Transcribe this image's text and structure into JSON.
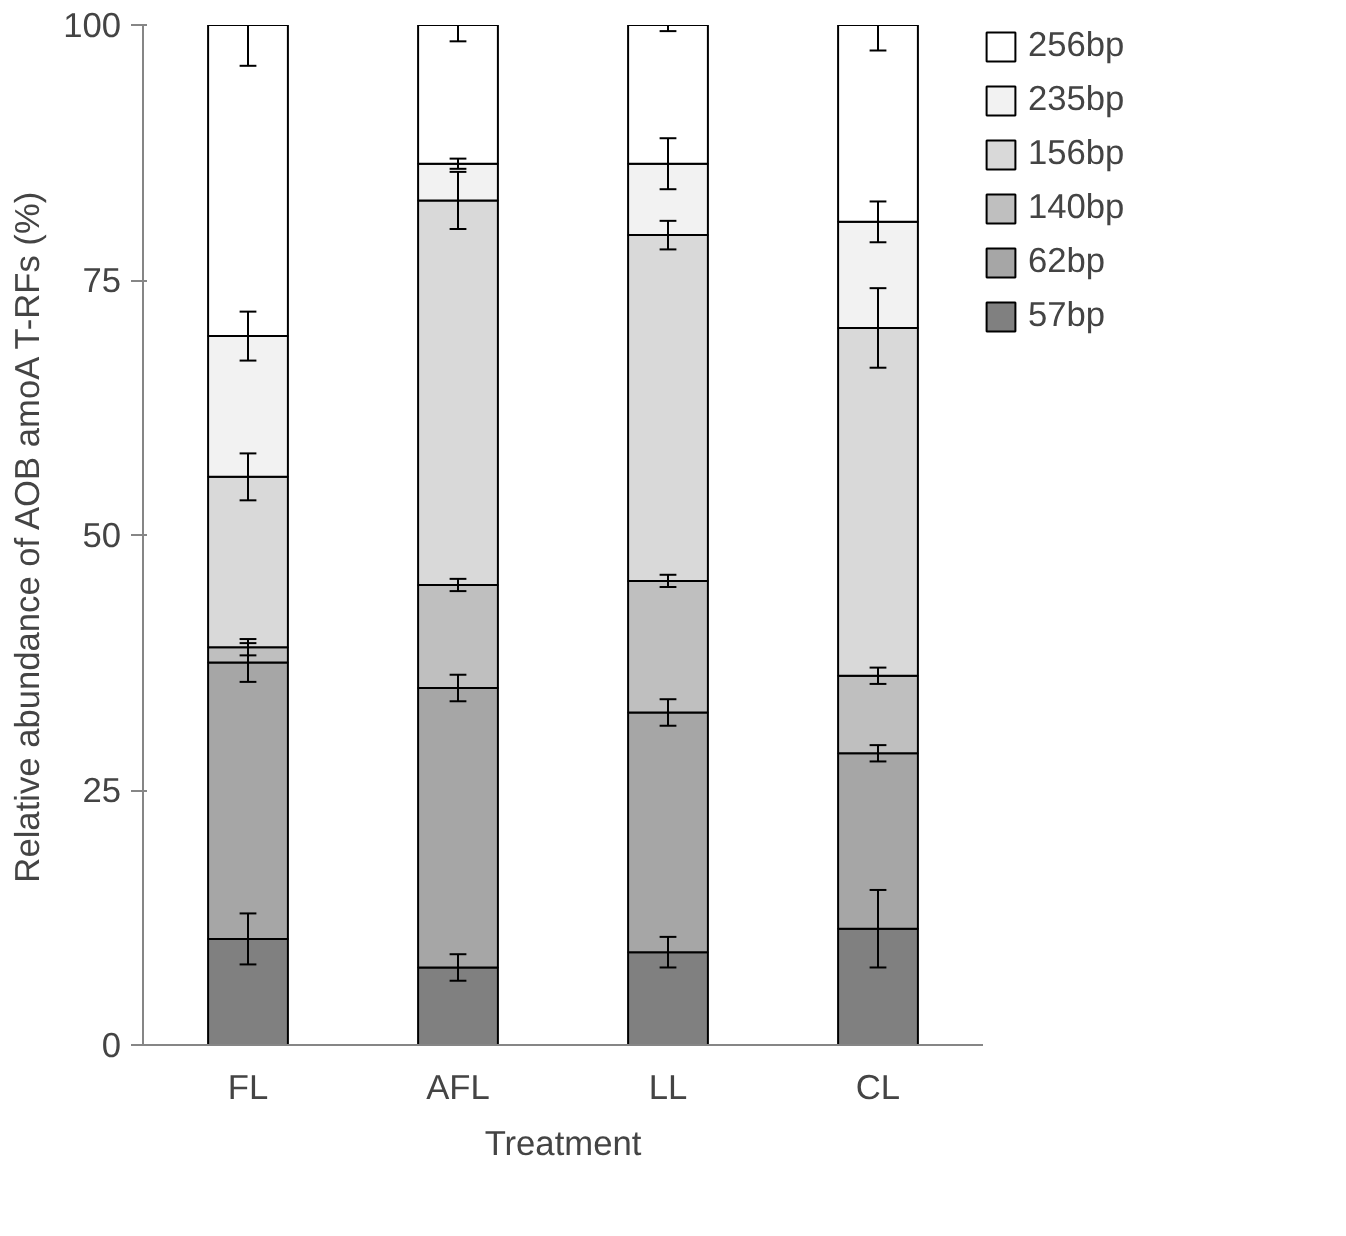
{
  "chart_data": {
    "type": "bar",
    "stacked": true,
    "xlabel": "Treatment",
    "ylabel": "Relative abundance of AOB amoA T-RFs (%)",
    "categories": [
      "FL",
      "AFL",
      "LL",
      "CL"
    ],
    "series": [
      {
        "name": "57bp",
        "color": "#808080",
        "values": [
          10.4,
          7.6,
          9.1,
          11.4
        ],
        "errors": [
          [
            7.9,
            12.9
          ],
          [
            6.3,
            8.9
          ],
          [
            7.6,
            10.6
          ],
          [
            7.6,
            15.2
          ]
        ]
      },
      {
        "name": "62bp",
        "color": "#a6a6a6",
        "values": [
          27.1,
          27.4,
          23.5,
          17.2
        ],
        "errors": [
          [
            35.6,
            39.4
          ],
          [
            33.7,
            36.3
          ],
          [
            31.3,
            33.9
          ],
          [
            27.8,
            29.4
          ]
        ]
      },
      {
        "name": "140bp",
        "color": "#bfbfbf",
        "values": [
          1.5,
          10.1,
          12.9,
          7.6
        ],
        "errors": [
          [
            38.2,
            39.8
          ],
          [
            44.5,
            45.7
          ],
          [
            44.9,
            46.1
          ],
          [
            35.4,
            37.0
          ]
        ]
      },
      {
        "name": "156bp",
        "color": "#d9d9d9",
        "values": [
          16.7,
          37.7,
          33.9,
          34.1
        ],
        "errors": [
          [
            53.4,
            58.0
          ],
          [
            80.0,
            85.6
          ],
          [
            78.0,
            80.8
          ],
          [
            66.4,
            74.2
          ]
        ]
      },
      {
        "name": "235bp",
        "color": "#f2f2f2",
        "values": [
          13.8,
          3.6,
          7.0,
          10.4
        ],
        "errors": [
          [
            67.1,
            71.9
          ],
          [
            85.9,
            86.9
          ],
          [
            83.9,
            88.9
          ],
          [
            78.7,
            82.7
          ]
        ]
      },
      {
        "name": "256bp",
        "color": "#ffffff",
        "values": [
          30.5,
          13.6,
          13.6,
          19.3
        ],
        "errors": [
          [
            96.0,
            100
          ],
          [
            98.4,
            100
          ],
          [
            99.4,
            100
          ],
          [
            97.5,
            100
          ]
        ]
      }
    ],
    "ylim": [
      0,
      100
    ],
    "yticks": [
      0,
      25,
      50,
      75,
      100
    ],
    "grid": false,
    "legend": "right"
  }
}
